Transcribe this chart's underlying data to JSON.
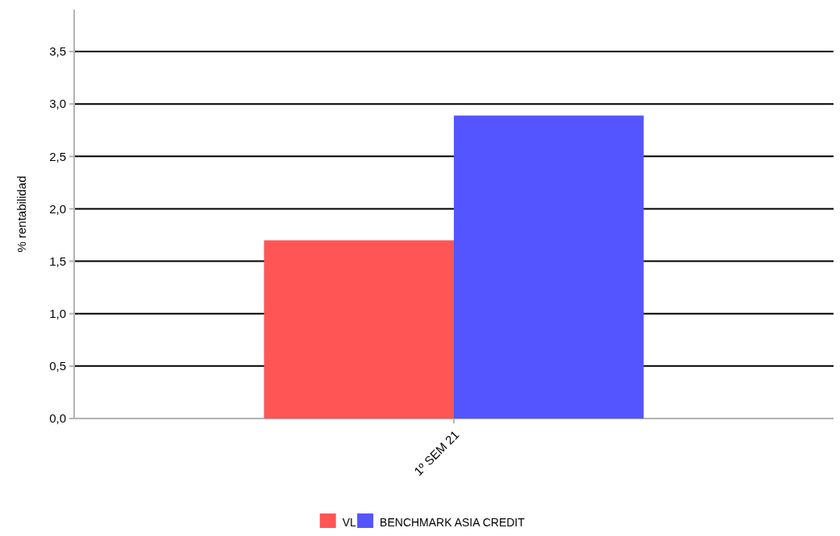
{
  "chart_data": {
    "type": "bar",
    "ylabel": "% rentabilidad",
    "categories": [
      "1º SEM 21"
    ],
    "series": [
      {
        "name": "VL",
        "color": "#ff5555",
        "values": [
          1.7
        ]
      },
      {
        "name": "BENCHMARK ASIA CREDIT",
        "color": "#5555ff",
        "values": [
          2.89
        ]
      }
    ],
    "ylim": [
      0,
      3.9
    ],
    "yticks": [
      {
        "value": 0,
        "label": "0,0"
      },
      {
        "value": 0.5,
        "label": "0,5"
      },
      {
        "value": 1,
        "label": "1,0"
      },
      {
        "value": 1.5,
        "label": "1,5"
      },
      {
        "value": 2,
        "label": "2,0"
      },
      {
        "value": 2.5,
        "label": "2,5"
      },
      {
        "value": 3,
        "label": "3,0"
      },
      {
        "value": 3.5,
        "label": "3,5"
      }
    ],
    "grid": "y",
    "legend": "bottom"
  }
}
